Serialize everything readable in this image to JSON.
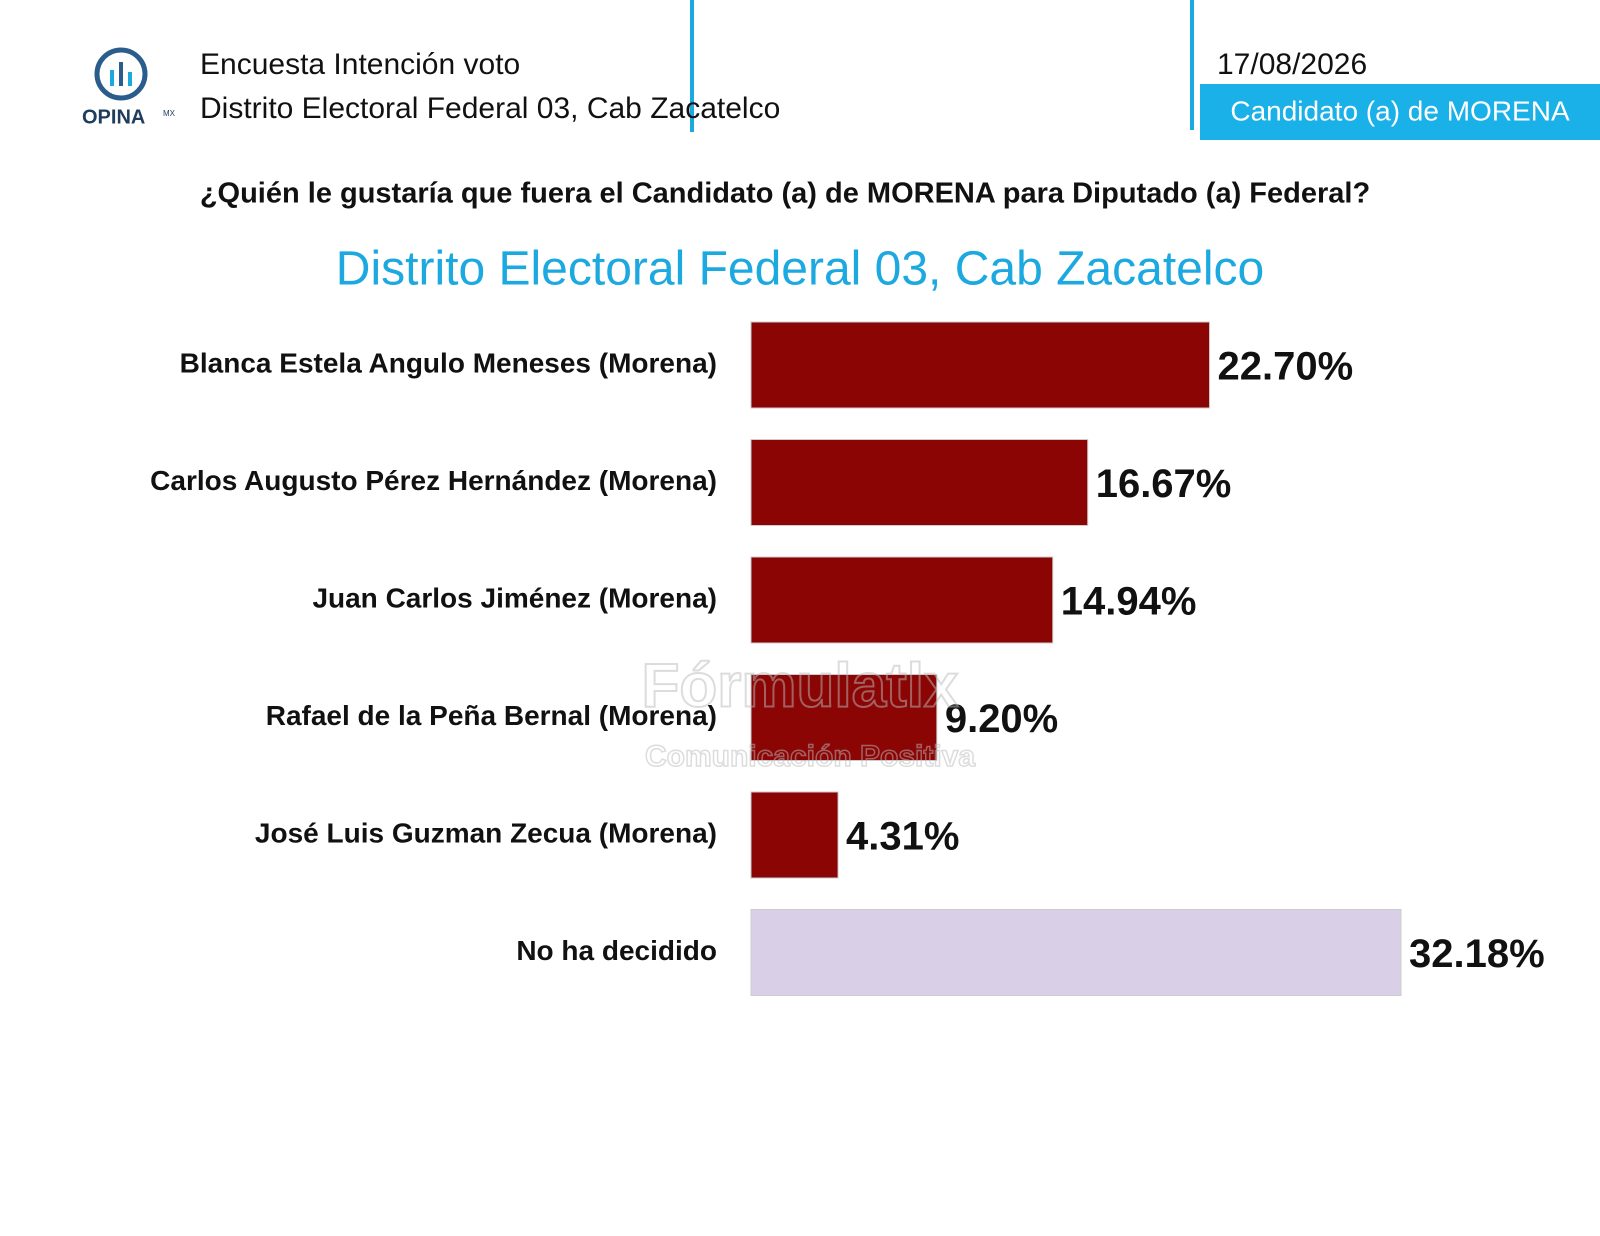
{
  "header": {
    "logo": "OPINA",
    "logo_suffix": "MX",
    "line1": "Encuesta Intención voto",
    "line2": "Distrito Electoral Federal 03, Cab Zacatelco",
    "date": "17/08/2026",
    "badge": "Candidato (a) de MORENA"
  },
  "question": "¿Quién le gustaría que fuera el Candidato (a) de MORENA para Diputado (a) Federal?",
  "watermark": {
    "title": "Fórmulatlx",
    "subtitle": "Comunicación Positiva"
  },
  "chart_data": {
    "type": "hbar",
    "title": "Distrito Electoral Federal 03, Cab Zacatelco",
    "categories": [
      "Blanca Estela Angulo Meneses (Morena)",
      "Carlos Augusto Pérez Hernández (Morena)",
      "Juan Carlos Jiménez (Morena)",
      "Rafael de la Peña Bernal (Morena)",
      "José Luis Guzman Zecua (Morena)",
      "No ha decidido"
    ],
    "values": [
      22.7,
      16.67,
      14.94,
      9.2,
      4.31,
      32.18
    ],
    "value_labels": [
      "22.70%",
      "16.67%",
      "14.94%",
      "9.20%",
      "4.31%",
      "32.18%"
    ],
    "colors": [
      "#8b0505",
      "#8b0505",
      "#8b0505",
      "#8b0505",
      "#8b0505",
      "#d9d0e8"
    ]
  }
}
